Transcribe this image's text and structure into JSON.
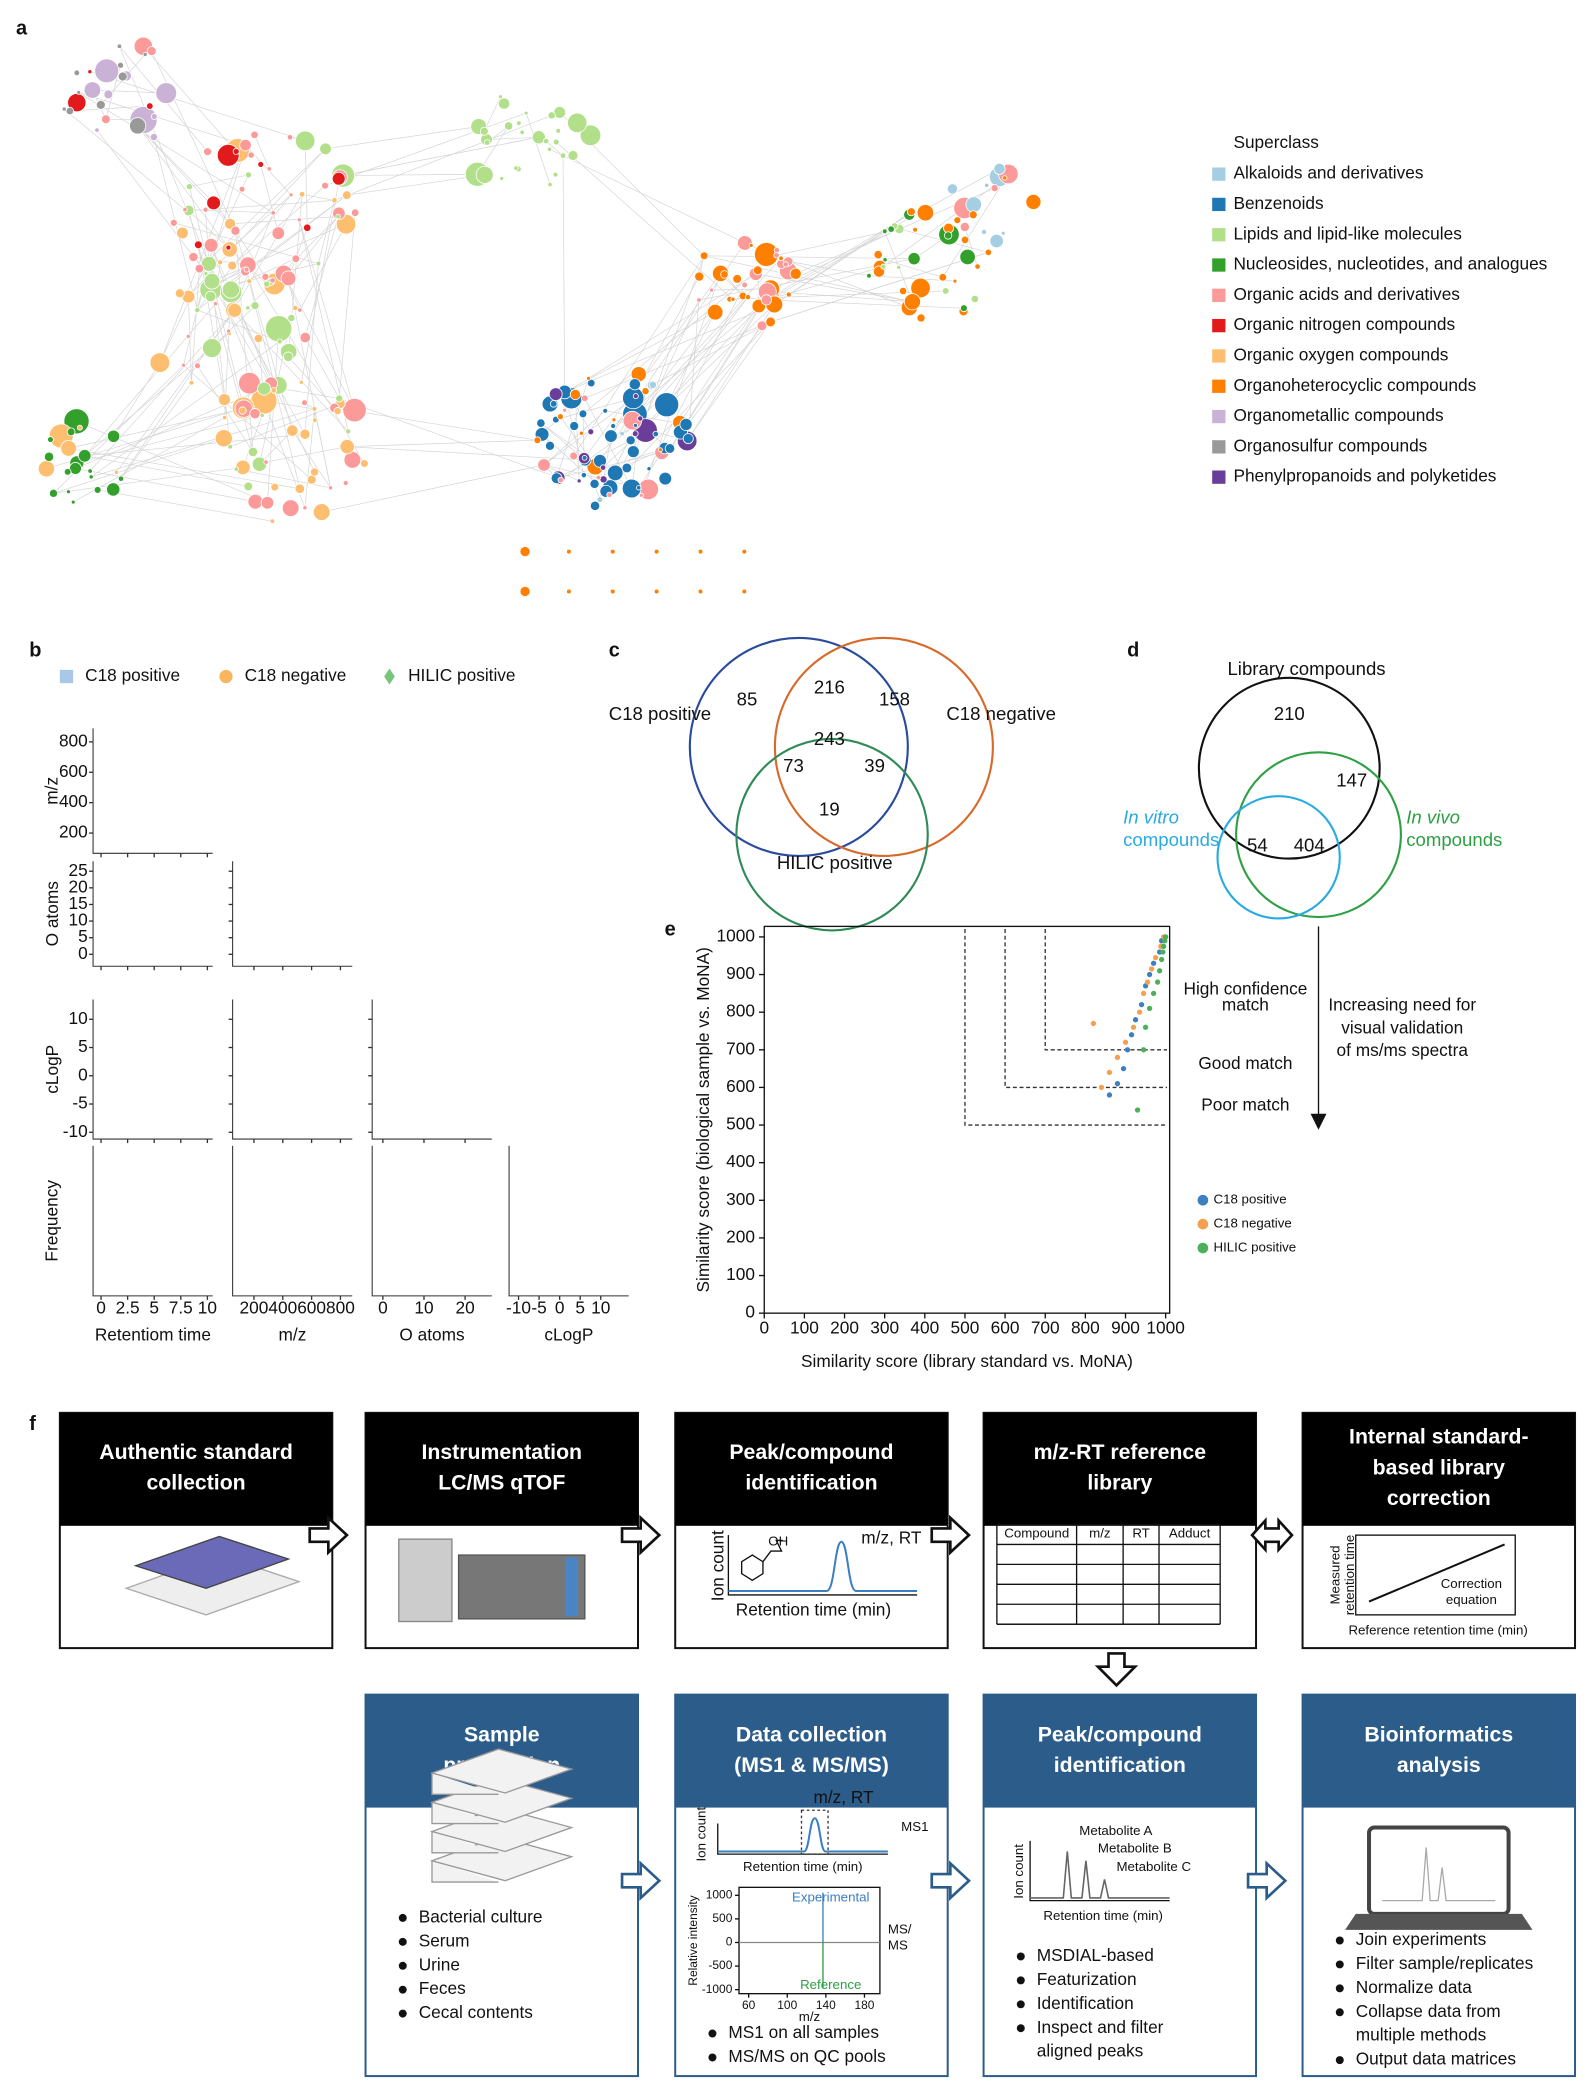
{
  "panels": [
    "a",
    "b",
    "c",
    "d",
    "e",
    "f"
  ],
  "network": {
    "legend_title": "Superclass",
    "classes": [
      {
        "name": "Alkaloids and derivatives",
        "color": "#a6cee3"
      },
      {
        "name": "Benzenoids",
        "color": "#1f78b4"
      },
      {
        "name": "Lipids and lipid-like molecules",
        "color": "#b2df8a"
      },
      {
        "name": "Nucleosides, nucleotides, and analogues",
        "color": "#33a02c"
      },
      {
        "name": "Organic acids and derivatives",
        "color": "#fb9a99"
      },
      {
        "name": "Organic nitrogen compounds",
        "color": "#e31a1c"
      },
      {
        "name": "Organic oxygen compounds",
        "color": "#fdbf6f"
      },
      {
        "name": "Organoheterocyclic compounds",
        "color": "#ff7f00"
      },
      {
        "name": "Organometallic compounds",
        "color": "#cab2d6"
      },
      {
        "name": "Organosulfur compounds",
        "color": "#999999"
      },
      {
        "name": "Phenylpropanoids and polyketides",
        "color": "#6a3d9a"
      }
    ]
  },
  "scatter_matrix": {
    "series": [
      {
        "name": "C18 positive",
        "color": "#a9c8e8"
      },
      {
        "name": "C18 negative",
        "color": "#f9b65f"
      },
      {
        "name": "HILIC positive",
        "color": "#78c47b"
      }
    ],
    "rows": [
      {
        "label": "m/z",
        "ylim": [
          67,
          889
        ],
        "yticks": [
          200,
          400,
          600,
          800
        ]
      },
      {
        "label": "O atoms",
        "ylim": [
          -3.6,
          28
        ],
        "yticks": [
          0,
          5,
          10,
          15,
          20,
          25
        ]
      },
      {
        "label": "cLogP",
        "ylim": [
          -11.2,
          13.5
        ],
        "yticks": [
          -10,
          -5,
          0,
          5,
          10
        ]
      },
      {
        "label": "Frequency"
      }
    ],
    "columns": [
      {
        "label": "Retentiom time",
        "xlim": [
          -0.75,
          10.5
        ],
        "xticks": [
          0,
          2.5,
          5,
          7.5,
          10
        ]
      },
      {
        "label": "m/z",
        "xlim": [
          52,
          882
        ],
        "xticks": [
          200,
          400,
          600,
          800
        ]
      },
      {
        "label": "O atoms",
        "xlim": [
          -2.6,
          26.5
        ],
        "xticks": [
          0,
          10,
          20
        ]
      },
      {
        "label": "cLogP",
        "xlim": [
          -12.3,
          16.8
        ],
        "xticks": [
          -10,
          -5,
          0,
          5,
          10
        ]
      }
    ]
  },
  "venn_sets": {
    "sets": [
      {
        "name": "C18 positive",
        "color": "#2a4b9b"
      },
      {
        "name": "C18 negative",
        "color": "#d9692a"
      },
      {
        "name": "HILIC positive",
        "color": "#2e8b57"
      }
    ],
    "regions": [
      85,
      216,
      158,
      73,
      243,
      39,
      19
    ]
  },
  "venn_library": {
    "title": "Library compounds",
    "counts": [
      210,
      147,
      54,
      404
    ],
    "in_vitro": {
      "name": "In vitro",
      "suffix": "compounds",
      "color": "#29abe2"
    },
    "in_vivo": {
      "name": "In vivo",
      "suffix": "compounds",
      "color": "#2ea043"
    }
  },
  "similarity": {
    "type": "scatter",
    "x_label": "Similarity score (library standard vs. MoNA)",
    "y_label": "Similarity score (biological sample vs. MoNA)",
    "xlim": [
      0,
      1010
    ],
    "ylim": [
      0,
      1028
    ],
    "xticks": [
      0,
      100,
      200,
      300,
      400,
      500,
      600,
      700,
      800,
      900,
      1000
    ],
    "yticks": [
      0,
      100,
      200,
      300,
      400,
      500,
      600,
      700,
      800,
      900,
      1000
    ],
    "thresholds": [
      500,
      600,
      700
    ],
    "zones": [
      [
        "High confidence",
        "match"
      ],
      [
        "Good match"
      ],
      [
        "Poor match"
      ]
    ],
    "arrow_note": [
      "Increasing need for",
      "visual validation",
      "of ms/ms spectra"
    ],
    "series": [
      {
        "name": "C18 positive",
        "color": "#3d7fc1",
        "x": [
          990,
          985,
          970,
          960,
          950,
          940,
          925,
          915,
          905,
          895,
          880,
          860
        ],
        "y": [
          990,
          960,
          930,
          900,
          870,
          820,
          780,
          740,
          700,
          650,
          610,
          580
        ]
      },
      {
        "name": "C18 negative",
        "color": "#f5a04f",
        "x": [
          995,
          988,
          975,
          965,
          955,
          945,
          935,
          920,
          900,
          880,
          860,
          840,
          820
        ],
        "y": [
          1000,
          975,
          945,
          915,
          880,
          850,
          800,
          760,
          720,
          680,
          640,
          600,
          770
        ]
      },
      {
        "name": "HILIC positive",
        "color": "#4cb05a",
        "x": [
          1000,
          998,
          995,
          993,
          990,
          985,
          980,
          970,
          960,
          950,
          945,
          930
        ],
        "y": [
          1000,
          990,
          975,
          960,
          940,
          910,
          880,
          850,
          810,
          760,
          700,
          540
        ]
      }
    ]
  },
  "workflow": {
    "top": [
      {
        "title": [
          "Authentic standard",
          "collection"
        ]
      },
      {
        "title": [
          "Instrumentation",
          "LC/MS qTOF"
        ]
      },
      {
        "title": [
          "Peak/compound",
          "identification"
        ]
      },
      {
        "title": [
          "m/z-RT reference",
          "library"
        ]
      },
      {
        "title": [
          "Internal standard-",
          "based library",
          "correction"
        ]
      }
    ],
    "bottom": [
      {
        "title": [
          "Sample",
          "preparation"
        ],
        "bullets": [
          "Bacterial culture",
          "Serum",
          "Urine",
          "Feces",
          "Cecal contents"
        ]
      },
      {
        "title": [
          "Data collection",
          "(MS1 & MS/MS)"
        ],
        "bullets": [
          "MS1 on all samples",
          "MS/MS on QC pools"
        ]
      },
      {
        "title": [
          "Peak/compound",
          "identification"
        ],
        "bullets": [
          "MSDIAL-based",
          "Featurization",
          "Identification",
          "Inspect and filter"
        ],
        "continuation": "aligned peaks"
      },
      {
        "title": [
          "Bioinformatics",
          "analysis"
        ],
        "bullets": [
          "Join experiments",
          "Filter sample/replicates",
          "Normalize data",
          "Collapse data from",
          "Output data matrices"
        ],
        "continuation": "multiple methods"
      }
    ],
    "identification_plot": {
      "y_label": "Ion count",
      "x_label": "Retention time (min)",
      "peak_label": "m/z, RT",
      "group": "OH"
    },
    "library_table": {
      "columns": [
        "Compound",
        "m/z",
        "RT",
        "Adduct"
      ]
    },
    "correction_plot": {
      "y_label": [
        "Measured",
        "retention time"
      ],
      "x_label": "Reference retention time (min)",
      "note": [
        "Correction",
        "equation"
      ]
    },
    "ms_plot": {
      "y_label": "Ion count",
      "peak_label": "m/z, RT",
      "ms1": "MS1",
      "x_label": "Retention time (min)",
      "spectrum": {
        "y_label": "Relative intensity",
        "x_label": "m/z",
        "yticks": [
          1000,
          500,
          0,
          -500,
          -1000
        ],
        "ylim": [
          -1085,
          1169
        ],
        "xticks": [
          60,
          100,
          140,
          180
        ],
        "xlim": [
          50,
          196
        ],
        "experimental": "Experimental",
        "reference": "Reference",
        "ms2": [
          "MS/",
          "MS"
        ]
      }
    },
    "metabolite_plot": {
      "y_label": "Ion count",
      "x_label": "Retention time (min)",
      "peaks": [
        "Metabolite A",
        "Metabolite B",
        "Metabolite C"
      ]
    }
  }
}
